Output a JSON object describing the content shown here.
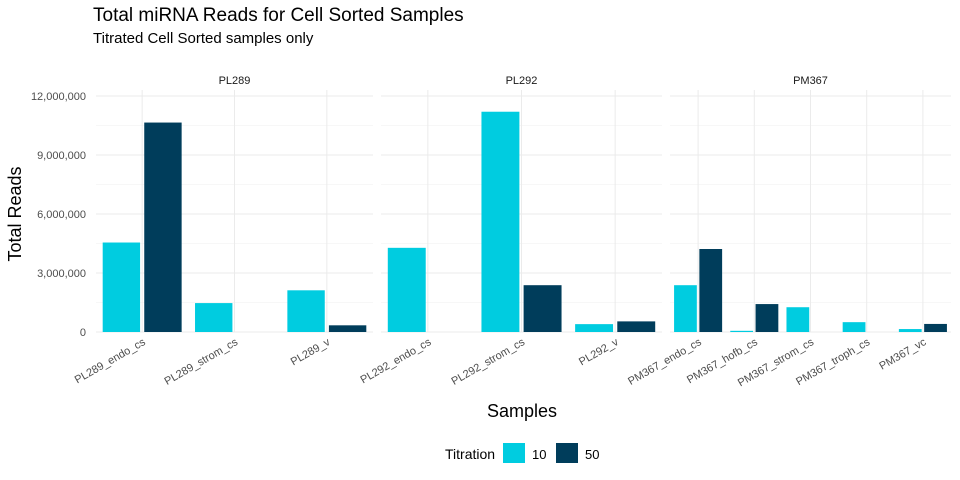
{
  "chart_data": {
    "type": "bar",
    "title": "Total miRNA Reads for Cell Sorted Samples",
    "subtitle": "Titrated Cell Sorted samples only",
    "xlabel": "Samples",
    "ylabel": "Total Reads",
    "ylim": [
      0,
      12000000
    ],
    "yticks": [
      0,
      3000000,
      6000000,
      9000000,
      12000000
    ],
    "ytick_labels": [
      "0",
      "3,000,000",
      "6,000,000",
      "9,000,000",
      "12,000,000"
    ],
    "legend": {
      "title": "Titration",
      "position": "bottom",
      "entries": [
        {
          "name": "10",
          "color": "#00CCE0"
        },
        {
          "name": "50",
          "color": "#003D5B"
        }
      ]
    },
    "grid": true,
    "facets": [
      {
        "name": "PL289",
        "categories": [
          "PL289_endo_cs",
          "PL289_strom_cs",
          "PL289_v"
        ],
        "series": [
          {
            "name": "10",
            "values": [
              4550000,
              1470000,
              2120000
            ]
          },
          {
            "name": "50",
            "values": [
              10650000,
              null,
              340000
            ]
          }
        ]
      },
      {
        "name": "PL292",
        "categories": [
          "PL292_endo_cs",
          "PL292_strom_cs",
          "PL292_v"
        ],
        "series": [
          {
            "name": "10",
            "values": [
              4280000,
              11200000,
              400000
            ]
          },
          {
            "name": "50",
            "values": [
              null,
              2380000,
              540000
            ]
          }
        ]
      },
      {
        "name": "PM367",
        "categories": [
          "PM367_endo_cs",
          "PM367_hofb_cs",
          "PM367_strom_cs",
          "PM367_troph_cs",
          "PM367_vc"
        ],
        "series": [
          {
            "name": "10",
            "values": [
              2380000,
              60000,
              1260000,
              500000,
              150000
            ]
          },
          {
            "name": "50",
            "values": [
              4220000,
              1420000,
              null,
              null,
              410000
            ]
          }
        ]
      }
    ]
  }
}
